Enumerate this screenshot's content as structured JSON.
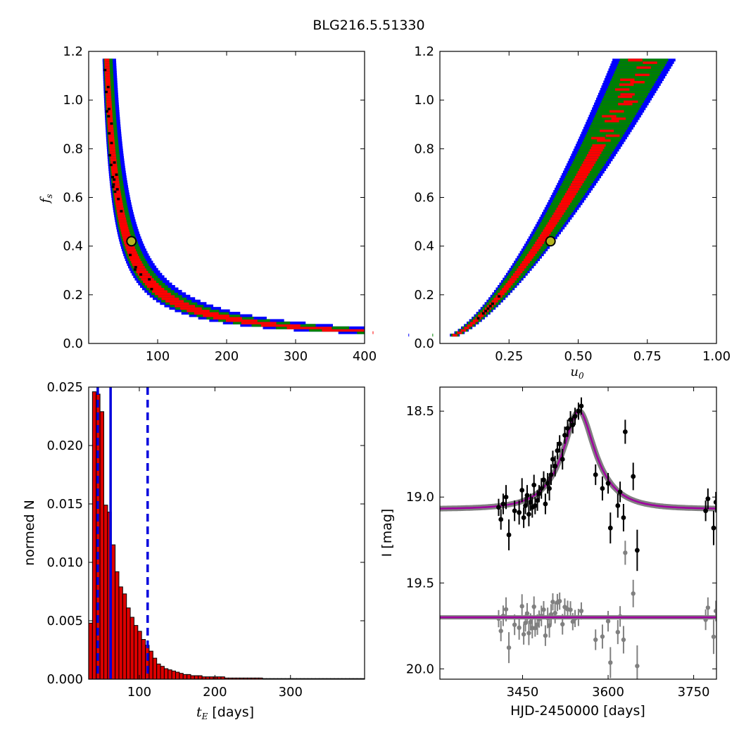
{
  "title": "BLG216.5.51330",
  "chart_data": [
    {
      "type": "heatmap",
      "panel": "top-left",
      "xlabel": "",
      "ylabel_main": "f",
      "ylabel_sub": "s",
      "xlim": [
        0,
        400
      ],
      "ylim": [
        0,
        1.2
      ],
      "xticks": [
        100,
        200,
        300,
        400
      ],
      "yticks": [
        0,
        0.2,
        0.4,
        0.6,
        0.8,
        1.0,
        1.2
      ],
      "xticklabels": [
        "100",
        "200",
        "300",
        "400"
      ],
      "yticklabels": [
        "0.0",
        "0.2",
        "0.4",
        "0.6",
        "0.8",
        "1.0",
        "1.2"
      ],
      "colors": {
        "outer": "#0000ff",
        "middle": "#008000",
        "inner": "#ff0000",
        "core": "#000000",
        "best_fit": "#b5b520"
      },
      "curve": {
        "a": 20,
        "c": 8,
        "ymin": 0.03,
        "ymax": 1.17
      },
      "best_fit": {
        "x": 62,
        "y": 0.42
      }
    },
    {
      "type": "heatmap",
      "panel": "top-right",
      "xlabel_main": "u",
      "xlabel_sub": "0",
      "ylabel": "",
      "xlim": [
        0,
        1.0
      ],
      "ylim": [
        0,
        1.2
      ],
      "xticks": [
        0.25,
        0.5,
        0.75,
        1.0
      ],
      "yticks": [
        0,
        0.2,
        0.4,
        0.6,
        0.8,
        1.0,
        1.2
      ],
      "xticklabels": [
        "0.25",
        "0.50",
        "0.75",
        "1.00"
      ],
      "yticklabels": [
        "0.0",
        "0.2",
        "0.4",
        "0.6",
        "0.8",
        "1.0",
        "1.2"
      ],
      "colors": {
        "outer": "#0000ff",
        "middle": "#008000",
        "inner": "#ff0000",
        "core": "#000000",
        "best_fit": "#b5b520"
      },
      "band": {
        "y_lo": 0.03,
        "y_hi": 1.17,
        "u_lo": 0.04,
        "u_hi": 0.74
      },
      "best_fit": {
        "x": 0.4,
        "y": 0.42
      }
    },
    {
      "type": "bar",
      "panel": "bottom-left",
      "xlabel_main": "t",
      "xlabel_sub": "E",
      "xlabel_unit": " [days]",
      "ylabel": "normed N",
      "xlim": [
        33,
        398
      ],
      "ylim": [
        0,
        0.025
      ],
      "xticks": [
        100,
        200,
        300
      ],
      "yticks": [
        0,
        0.005,
        0.01,
        0.015,
        0.02,
        0.025
      ],
      "xticklabels": [
        "100",
        "200",
        "300"
      ],
      "yticklabels": [
        "0.000",
        "0.005",
        "0.010",
        "0.015",
        "0.020",
        "0.025"
      ],
      "bin_start": 33,
      "bin_width": 5,
      "values": [
        0.0048,
        0.0246,
        0.0244,
        0.0229,
        0.0149,
        0.0143,
        0.0115,
        0.0092,
        0.0079,
        0.0073,
        0.0061,
        0.0053,
        0.0046,
        0.0041,
        0.0034,
        0.0029,
        0.0024,
        0.0018,
        0.0013,
        0.0011,
        0.0009,
        0.0008,
        0.0007,
        0.0006,
        0.0005,
        0.0004,
        0.0004,
        0.0003,
        0.0003,
        0.0003,
        0.0002,
        0.0002,
        0.0002,
        0.0002,
        0.0002,
        0.0002,
        0.0001,
        0.0001,
        0.0001,
        0.0001,
        0.0001,
        0.0001,
        0.0001,
        0.0001,
        0.0001,
        0.0001,
        5e-05,
        5e-05,
        5e-05,
        5e-05,
        5e-05,
        5e-05,
        5e-05,
        5e-05,
        5e-05,
        5e-05,
        5e-05,
        5e-05,
        5e-05,
        5e-05,
        5e-05,
        5e-05,
        5e-05,
        5e-05,
        5e-05,
        5e-05,
        5e-05,
        5e-05,
        5e-05,
        5e-05,
        5e-05,
        5e-05,
        5e-05
      ],
      "bar_color": "#dd0000",
      "median": 62,
      "percentile_lines": [
        45,
        111
      ],
      "line_color": "#0000dd"
    },
    {
      "type": "line",
      "panel": "bottom-right",
      "xlabel": "HJD-2450000 [days]",
      "ylabel": "I [mag]",
      "xlim": [
        3305,
        3790
      ],
      "ylim": [
        20.06,
        18.36
      ],
      "xticks": [
        3450,
        3600,
        3750
      ],
      "yticks": [
        18.5,
        19.0,
        19.5,
        20.0
      ],
      "xticklabels": [
        "3450",
        "3600",
        "3750"
      ],
      "yticklabels": [
        "18.5",
        "19.0",
        "19.5",
        "20.0"
      ],
      "model": {
        "t0": 3549,
        "tE": 62,
        "u0": 0.4,
        "fs": 0.42,
        "baseline": 19.07,
        "resid_level": 19.7
      },
      "points": [
        {
          "t": 3408,
          "m": 19.06,
          "e": 0.05
        },
        {
          "t": 3412,
          "m": 19.13,
          "e": 0.06
        },
        {
          "t": 3416,
          "m": 19.04,
          "e": 0.06
        },
        {
          "t": 3421,
          "m": 19.0,
          "e": 0.07
        },
        {
          "t": 3426,
          "m": 19.22,
          "e": 0.09
        },
        {
          "t": 3436,
          "m": 19.08,
          "e": 0.06
        },
        {
          "t": 3444,
          "m": 19.09,
          "e": 0.07
        },
        {
          "t": 3449,
          "m": 18.96,
          "e": 0.07
        },
        {
          "t": 3452,
          "m": 19.12,
          "e": 0.06
        },
        {
          "t": 3455,
          "m": 19.05,
          "e": 0.05
        },
        {
          "t": 3458,
          "m": 18.99,
          "e": 0.06
        },
        {
          "t": 3461,
          "m": 19.1,
          "e": 0.07
        },
        {
          "t": 3464,
          "m": 19.03,
          "e": 0.05
        },
        {
          "t": 3467,
          "m": 19.06,
          "e": 0.06
        },
        {
          "t": 3470,
          "m": 18.93,
          "e": 0.06
        },
        {
          "t": 3472,
          "m": 19.05,
          "e": 0.05
        },
        {
          "t": 3476,
          "m": 19.02,
          "e": 0.06
        },
        {
          "t": 3479,
          "m": 18.98,
          "e": 0.05
        },
        {
          "t": 3483,
          "m": 18.95,
          "e": 0.06
        },
        {
          "t": 3487,
          "m": 18.9,
          "e": 0.05
        },
        {
          "t": 3490,
          "m": 19.04,
          "e": 0.06
        },
        {
          "t": 3494,
          "m": 18.92,
          "e": 0.06
        },
        {
          "t": 3497,
          "m": 18.95,
          "e": 0.07
        },
        {
          "t": 3500,
          "m": 18.87,
          "e": 0.06
        },
        {
          "t": 3503,
          "m": 18.78,
          "e": 0.05
        },
        {
          "t": 3507,
          "m": 18.82,
          "e": 0.06
        },
        {
          "t": 3511,
          "m": 18.73,
          "e": 0.05
        },
        {
          "t": 3515,
          "m": 18.69,
          "e": 0.05
        },
        {
          "t": 3520,
          "m": 18.78,
          "e": 0.06
        },
        {
          "t": 3524,
          "m": 18.64,
          "e": 0.05
        },
        {
          "t": 3529,
          "m": 18.6,
          "e": 0.05
        },
        {
          "t": 3534,
          "m": 18.55,
          "e": 0.05
        },
        {
          "t": 3538,
          "m": 18.58,
          "e": 0.05
        },
        {
          "t": 3542,
          "m": 18.53,
          "e": 0.05
        },
        {
          "t": 3548,
          "m": 18.5,
          "e": 0.05
        },
        {
          "t": 3553,
          "m": 18.47,
          "e": 0.05
        },
        {
          "t": 3578,
          "m": 18.87,
          "e": 0.06
        },
        {
          "t": 3590,
          "m": 18.95,
          "e": 0.07
        },
        {
          "t": 3600,
          "m": 18.92,
          "e": 0.06
        },
        {
          "t": 3604,
          "m": 19.18,
          "e": 0.09
        },
        {
          "t": 3617,
          "m": 19.05,
          "e": 0.07
        },
        {
          "t": 3621,
          "m": 18.97,
          "e": 0.06
        },
        {
          "t": 3627,
          "m": 19.12,
          "e": 0.08
        },
        {
          "t": 3630,
          "m": 18.62,
          "e": 0.07
        },
        {
          "t": 3644,
          "m": 18.88,
          "e": 0.08
        },
        {
          "t": 3651,
          "m": 19.31,
          "e": 0.12
        },
        {
          "t": 3771,
          "m": 19.08,
          "e": 0.06
        },
        {
          "t": 3775,
          "m": 19.01,
          "e": 0.06
        },
        {
          "t": 3785,
          "m": 19.18,
          "e": 0.1
        },
        {
          "t": 3789,
          "m": 19.03,
          "e": 0.06
        }
      ],
      "data_color": "#000000",
      "model_color": "#a000a0",
      "residual_color": "#808080"
    }
  ]
}
